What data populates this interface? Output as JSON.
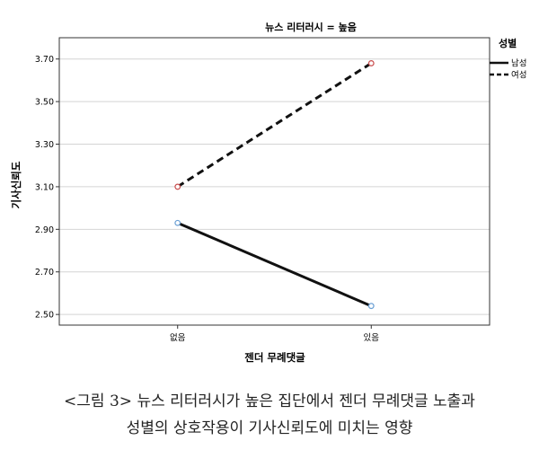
{
  "chart_data": {
    "type": "line",
    "title": "뉴스 리터러시 = 높음",
    "xlabel": "젠더 무례댓글",
    "ylabel": "기사신뢰도",
    "categories": [
      "없음",
      "있음"
    ],
    "ylim": [
      2.45,
      3.8
    ],
    "yticks": [
      "2.50",
      "2.70",
      "2.90",
      "3.10",
      "3.30",
      "3.50",
      "3.70"
    ],
    "grid": true,
    "legend_title": "성별",
    "legend_position": "top-right",
    "series": [
      {
        "name": "남성",
        "values": [
          2.93,
          2.54
        ],
        "style": "solid",
        "color": "#111111",
        "marker_color": "#6a9fd4"
      },
      {
        "name": "여성",
        "values": [
          3.1,
          3.68
        ],
        "style": "dashed",
        "color": "#111111",
        "marker_color": "#c84b4b"
      }
    ]
  },
  "caption": {
    "line1": "<그림 3> 뉴스 리터러시가 높은 집단에서 젠더 무례댓글 노출과",
    "line2": "성별의 상호작용이 기사신뢰도에 미치는 영향"
  }
}
